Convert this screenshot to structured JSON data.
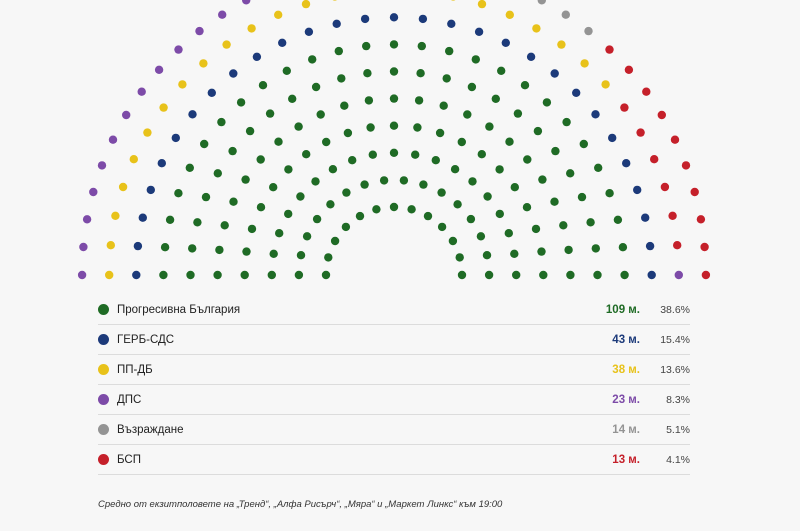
{
  "chart_data": {
    "type": "hemicycle",
    "total_seats": 240,
    "parties": [
      {
        "name": "Прогресивна България",
        "seats": 109,
        "seats_label": "109 м.",
        "percent": "38.6%",
        "color": "#1f6b25"
      },
      {
        "name": "ГЕРБ-СДС",
        "seats": 43,
        "seats_label": "43 м.",
        "percent": "15.4%",
        "color": "#1c3a7a"
      },
      {
        "name": "ПП-ДБ",
        "seats": 38,
        "seats_label": "38 м.",
        "percent": "13.6%",
        "color": "#e8c21a"
      },
      {
        "name": "ДПС",
        "seats": 23,
        "seats_label": "23 м.",
        "percent": "8.3%",
        "color": "#7d4ba8"
      },
      {
        "name": "Възраждане",
        "seats": 14,
        "seats_label": "14 м.",
        "percent": "5.1%",
        "color": "#949494"
      },
      {
        "name": "БСП",
        "seats": 13,
        "seats_label": "13 м.",
        "percent": "4.1%",
        "color": "#c5202a"
      }
    ]
  },
  "footnote": "Средно от екзитполовете на „Тренд“, „Алфа Рисърч“, „Мяра“ и „Маркет Линкс“ към 19:00"
}
